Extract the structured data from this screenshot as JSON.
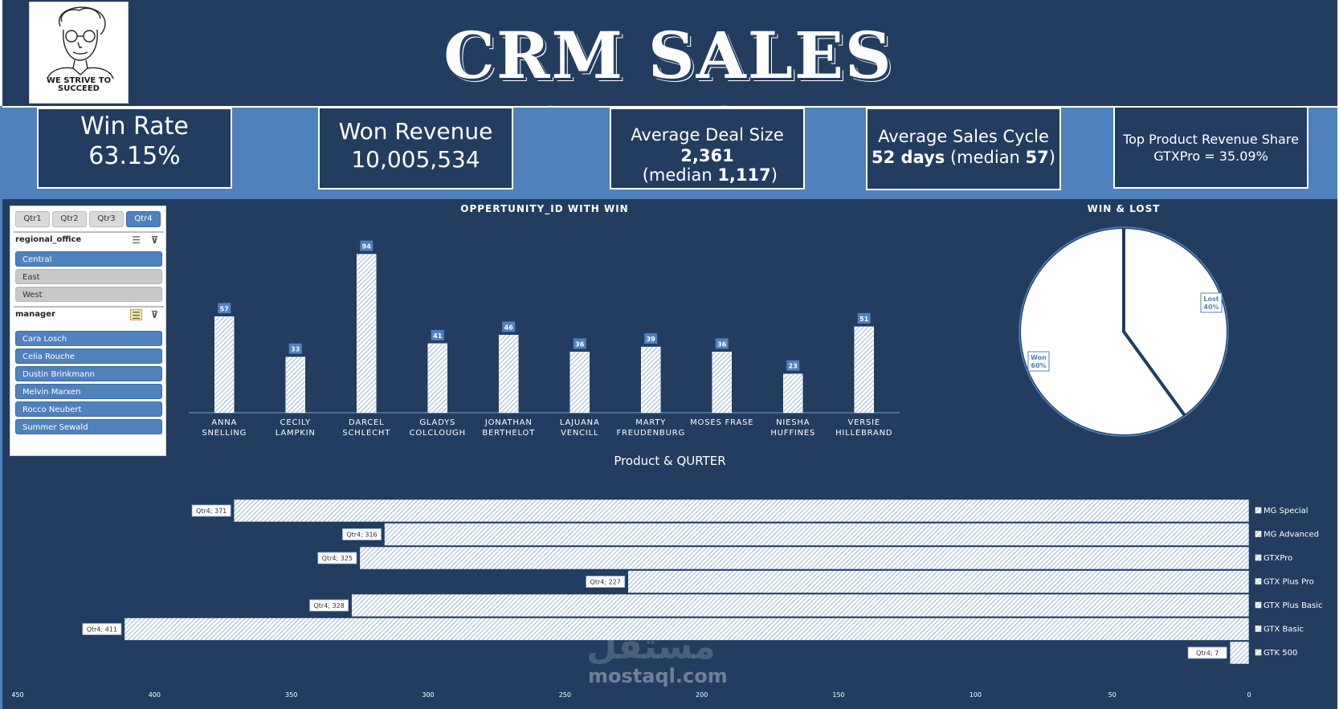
{
  "header": {
    "title": "CRM SALES DASHBOARD",
    "logo_text": "WE STRIVE TO SUCCEED"
  },
  "kpis": {
    "win_rate": {
      "label": "Win Rate",
      "value": "63.15%"
    },
    "won_revenue": {
      "label": "Won Revenue",
      "value": "10,005,534"
    },
    "avg_deal": {
      "label": "Average Deal Size",
      "value_bold": "2,361",
      "value_rest": " (median ",
      "median_bold": "1,117",
      "close": ")"
    },
    "avg_cycle": {
      "label": "Average Sales Cycle",
      "value_bold": "52 days",
      "value_rest": " (median ",
      "median_bold": "57",
      "close": ")"
    },
    "top_product": {
      "label": "Top Product Revenue Share",
      "value": "GTXPro = 35.09%"
    }
  },
  "slicer": {
    "quarters": [
      {
        "label": "Qtr1",
        "selected": false
      },
      {
        "label": "Qtr2",
        "selected": false
      },
      {
        "label": "Qtr3",
        "selected": false
      },
      {
        "label": "Qtr4",
        "selected": true
      }
    ],
    "regional_office": {
      "title": "regional_office",
      "items": [
        {
          "label": "Central",
          "selected": true
        },
        {
          "label": "East",
          "selected": false
        },
        {
          "label": "West",
          "selected": false
        }
      ]
    },
    "manager": {
      "title": "manager",
      "items": [
        {
          "label": "Cara Losch",
          "selected": true
        },
        {
          "label": "Celia Rouche",
          "selected": true
        },
        {
          "label": "Dustin Brinkmann",
          "selected": true
        },
        {
          "label": "Melvin Marxen",
          "selected": true
        },
        {
          "label": "Rocco Neubert",
          "selected": true
        },
        {
          "label": "Summer Sewald",
          "selected": true
        }
      ]
    }
  },
  "watermark": {
    "arabic": "مستقل",
    "latin": "mostaql.com"
  },
  "colors": {
    "dark": "#223d60",
    "accent": "#4f81bd",
    "white": "#ffffff"
  },
  "chart_data": [
    {
      "type": "bar",
      "title": "OPPERTUNITY_ID  WITH WIN",
      "categories": [
        [
          "ANNA",
          "SNELLING"
        ],
        [
          "CECILY",
          "LAMPKIN"
        ],
        [
          "DARCEL",
          "SCHLECHT"
        ],
        [
          "GLADYS",
          "COLCLOUGH"
        ],
        [
          "JONATHAN",
          "BERTHELOT"
        ],
        [
          "LAJUANA",
          "VENCILL"
        ],
        [
          "MARTY",
          "FREUDENBURG"
        ],
        [
          "MOSES FRASE"
        ],
        [
          "NIESHA",
          "HUFFINES"
        ],
        [
          "VERSIE",
          "HILLEBRAND"
        ]
      ],
      "values": [
        57,
        33,
        94,
        41,
        46,
        36,
        39,
        36,
        23,
        51
      ],
      "data_labels": [
        "57",
        "33",
        "94",
        "41",
        "46",
        "36",
        "39",
        "36",
        "23",
        "51"
      ],
      "grid": false
    },
    {
      "type": "pie",
      "title": "WIN & LOST",
      "slices": [
        {
          "label": "Lost",
          "percent_label": "40%",
          "value": 40
        },
        {
          "label": "Won",
          "percent_label": "60%",
          "value": 60
        }
      ]
    },
    {
      "type": "bar",
      "orientation": "horizontal",
      "x_reversed": true,
      "title": "Product & QURTER",
      "categories": [
        "MG Special",
        "MG Advanced",
        "GTXPro",
        "GTX Plus Pro",
        "GTX Plus Basic",
        "GTX Basic",
        "GTK 500"
      ],
      "values": [
        371,
        316,
        325,
        227,
        328,
        411,
        7
      ],
      "data_labels": [
        "Qtr4; 371",
        "Qtr4; 316",
        "Qtr4; 325",
        "Qtr4; 227",
        "Qtr4; 328",
        "Qtr4; 411",
        "Qtr4; 7"
      ],
      "xlim": [
        0,
        450
      ],
      "x_ticks": [
        "450",
        "400",
        "350",
        "300",
        "250",
        "200",
        "150",
        "100",
        "50",
        "0"
      ],
      "x_tick_values": [
        450,
        400,
        350,
        300,
        250,
        200,
        150,
        100,
        50,
        0
      ],
      "grid": false
    }
  ]
}
